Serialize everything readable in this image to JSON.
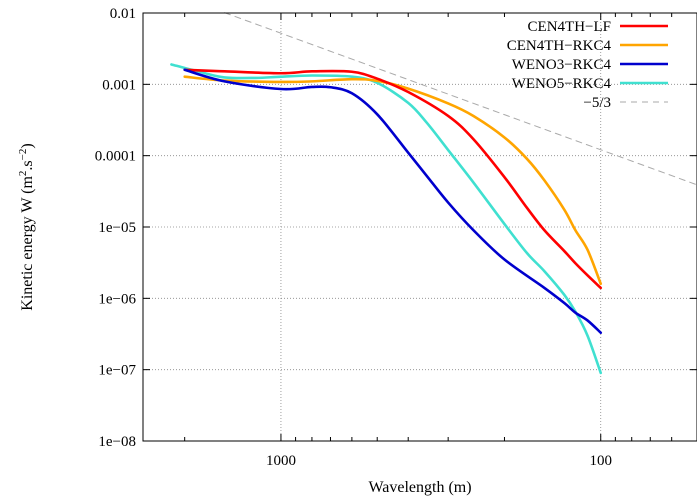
{
  "chart_data": {
    "type": "line",
    "title": "",
    "xlabel": "Wavelength (m)",
    "ylabel_main": "Kinetic energy W (m",
    "ylabel_sup1": "2",
    "ylabel_mid": ".s",
    "ylabel_sup2": "−2",
    "ylabel_end": ")",
    "x_scale": "log",
    "y_scale": "log",
    "x_reversed": true,
    "xlim": [
      2700,
      50
    ],
    "ylim": [
      1e-08,
      0.01
    ],
    "grid": "dotted",
    "legend_position": "top-right",
    "x_ticks": [
      {
        "value": 1000,
        "label": "1000"
      },
      {
        "value": 100,
        "label": "100"
      }
    ],
    "y_ticks": [
      {
        "value": 0.01,
        "label": "0.01"
      },
      {
        "value": 0.001,
        "label": "0.001"
      },
      {
        "value": 0.0001,
        "label": "0.0001"
      },
      {
        "value": 1e-05,
        "label": "1e−05"
      },
      {
        "value": 1e-06,
        "label": "1e−06"
      },
      {
        "value": 1e-07,
        "label": "1e−07"
      },
      {
        "value": 1e-08,
        "label": "1e−08"
      }
    ],
    "series": [
      {
        "name": "CEN4TH−LF",
        "color": "#ff0000",
        "dashed": false,
        "x": [
          2000,
          1500,
          1000,
          800,
          600,
          500,
          400,
          300,
          250,
          200,
          170,
          150,
          130,
          120,
          110,
          100
        ],
        "y": [
          0.0016,
          0.00152,
          0.00143,
          0.00152,
          0.0015,
          0.0012,
          0.00078,
          0.00036,
          0.00017,
          5e-05,
          1.85e-05,
          9e-06,
          4.6e-06,
          3.1e-06,
          2.1e-06,
          1.4e-06
        ]
      },
      {
        "name": "CEN4TH−RKC4",
        "color": "#ffa500",
        "dashed": false,
        "x": [
          2000,
          1500,
          1000,
          800,
          600,
          500,
          400,
          300,
          250,
          200,
          170,
          150,
          130,
          120,
          110,
          100
        ],
        "y": [
          0.00128,
          0.00113,
          0.00108,
          0.0011,
          0.00118,
          0.00112,
          0.00087,
          0.00054,
          0.00036,
          0.00018,
          9e-05,
          4.5e-05,
          1.75e-05,
          9e-06,
          4.8e-06,
          1.6e-06
        ]
      },
      {
        "name": "WENO3−RKC4",
        "color": "#0000cd",
        "dashed": false,
        "x": [
          2000,
          1500,
          1000,
          800,
          700,
          600,
          500,
          400,
          350,
          300,
          250,
          200,
          150,
          130,
          120,
          110,
          100
        ],
        "y": [
          0.0016,
          0.0011,
          0.00086,
          0.00092,
          0.00091,
          0.00075,
          0.00038,
          0.00011,
          5.2e-05,
          2.2e-05,
          9e-06,
          3.5e-06,
          1.4e-06,
          8.6e-07,
          6.3e-07,
          4.9e-07,
          3.3e-07
        ]
      },
      {
        "name": "WENO5−RKC4",
        "color": "#40e0d0",
        "dashed": false,
        "x": [
          2200,
          1800,
          1500,
          1200,
          1000,
          800,
          600,
          500,
          400,
          350,
          300,
          250,
          200,
          170,
          150,
          130,
          120,
          110,
          100
        ],
        "y": [
          0.0019,
          0.0015,
          0.00125,
          0.00123,
          0.00128,
          0.00133,
          0.00128,
          0.00105,
          0.00055,
          0.00029,
          0.00012,
          4.2e-05,
          1.1e-05,
          4.3e-06,
          2.4e-06,
          1.12e-06,
          6.5e-07,
          3e-07,
          9e-08
        ]
      },
      {
        "name": "−5/3",
        "color": "#aaaaaa",
        "dashed": true,
        "x": [
          1500,
          50
        ],
        "y": [
          0.0101,
          3.9e-05
        ]
      }
    ]
  }
}
